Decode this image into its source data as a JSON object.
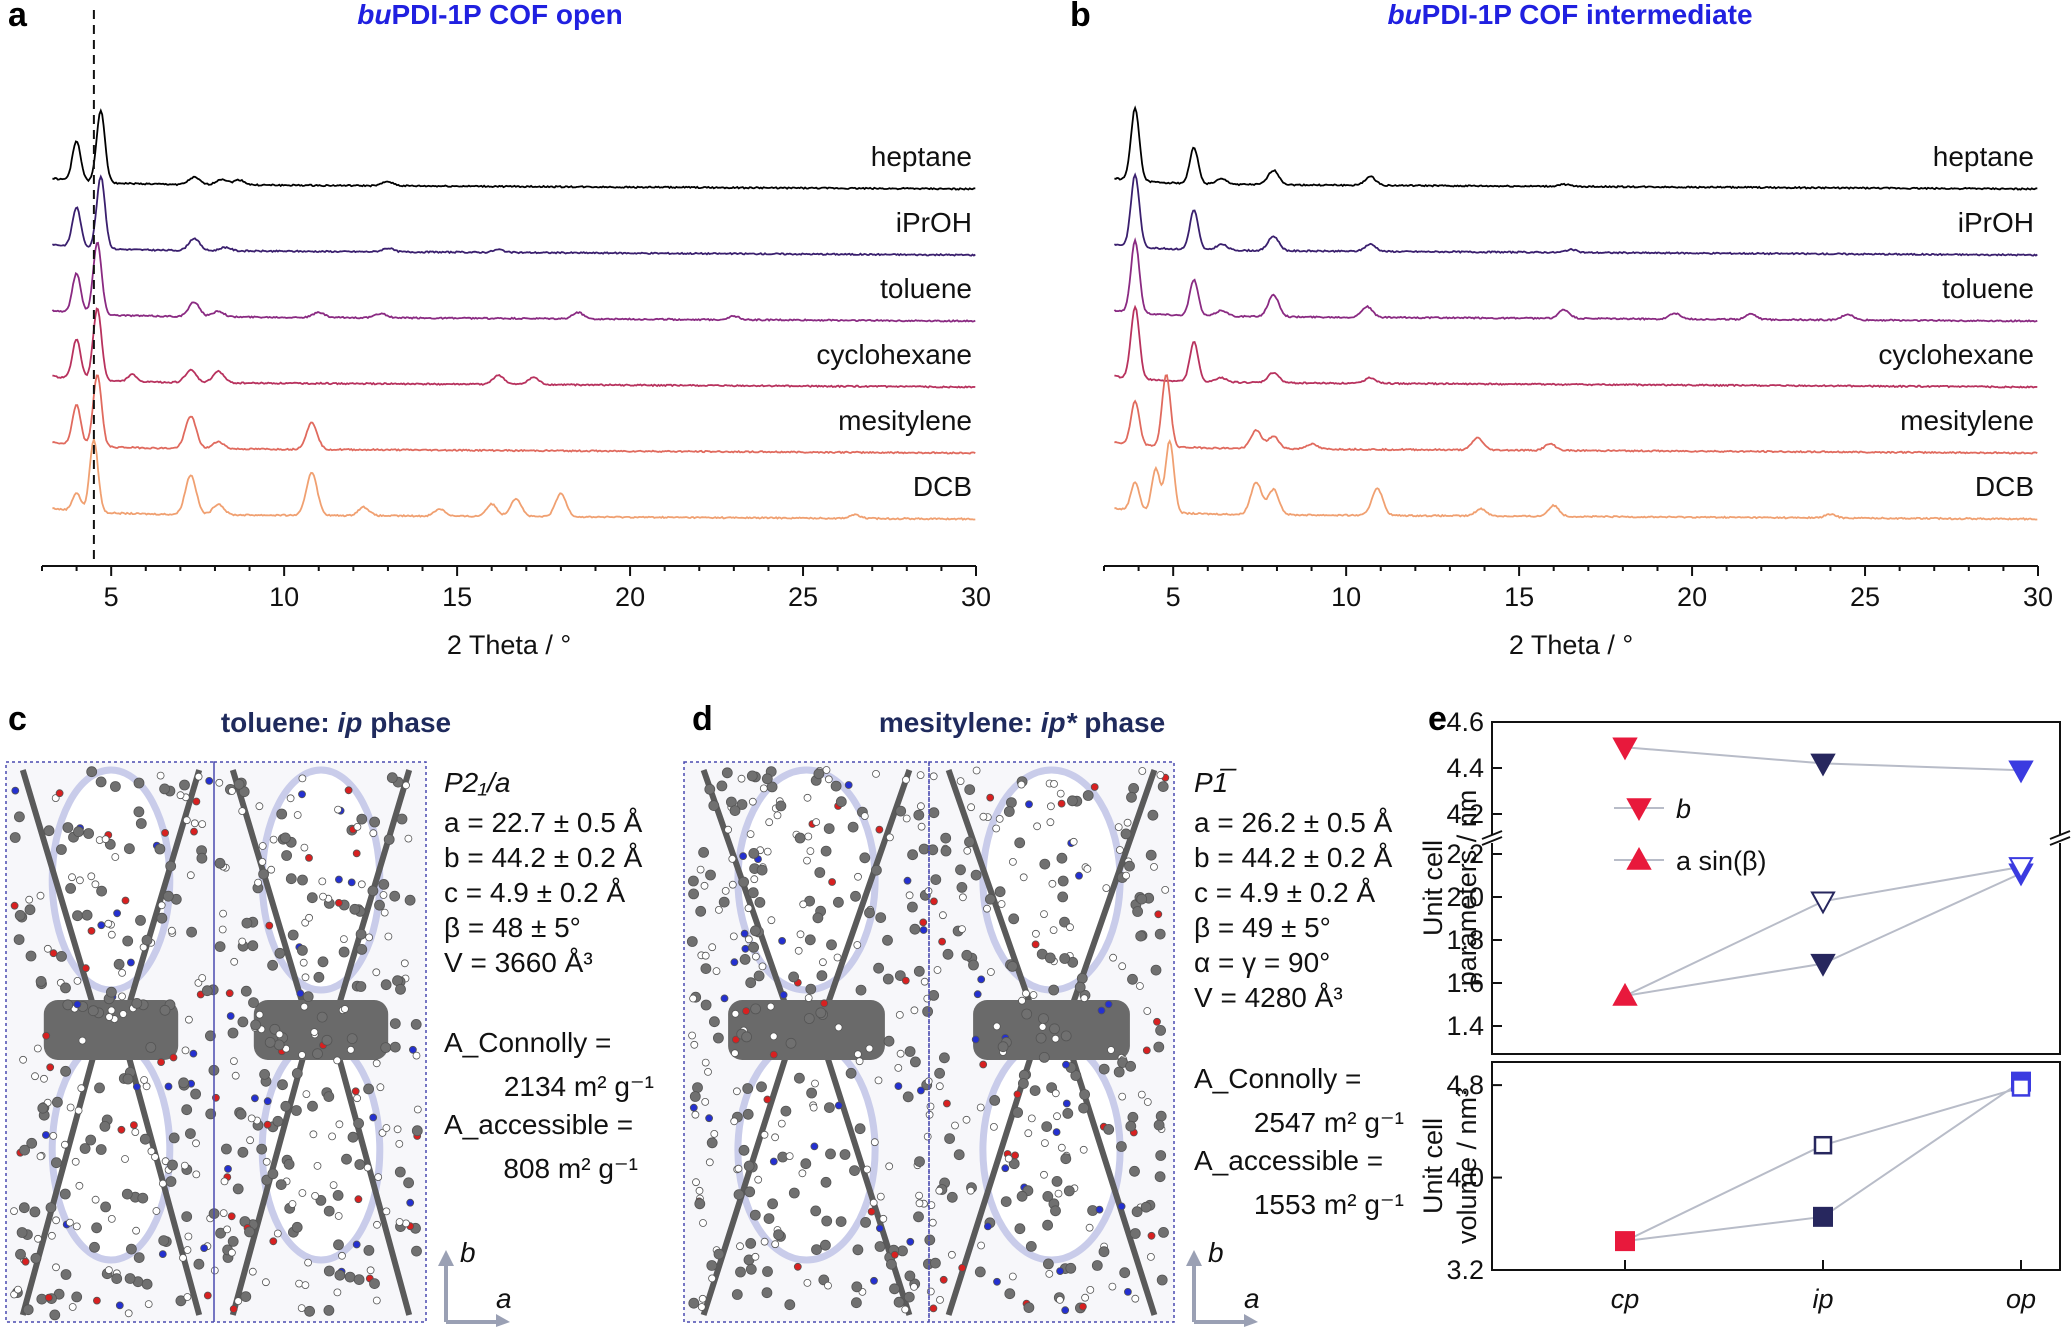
{
  "panels": {
    "a": {
      "letter": "a",
      "title_italic": "bu",
      "title_rest": "PDI-1P COF open"
    },
    "b": {
      "letter": "b",
      "title_italic": "bu",
      "title_rest": "PDI-1P COF intermediate"
    },
    "c": {
      "letter": "c",
      "title_pre": "toluene: ",
      "title_italic": "ip",
      "title_post": " phase"
    },
    "d": {
      "letter": "d",
      "title_pre": "mesitylene: ",
      "title_italic": "ip*",
      "title_post": " phase"
    },
    "e": {
      "letter": "e"
    }
  },
  "structure_c": {
    "space_group": "P2₁/a",
    "params": [
      "a = 22.7 ± 0.5 Å",
      "b = 44.2 ± 0.2 Å",
      "c = 4.9 ± 0.2 Å",
      "β = 48 ± 5°",
      "V = 3660 Å³"
    ],
    "connolly_label": "A_Connolly =",
    "connolly_value": "2134 m² g⁻¹",
    "accessible_label": "A_accessible =",
    "accessible_value": "808 m² g⁻¹",
    "axis_b": "b",
    "axis_a": "a"
  },
  "structure_d": {
    "space_group": "P1̅",
    "params": [
      "a = 26.2 ± 0.5 Å",
      "b = 44.2 ± 0.2 Å",
      "c = 4.9 ± 0.2 Å",
      "β = 49 ± 5°",
      "α = γ = 90°",
      "V = 4280 Å³"
    ],
    "connolly_label": "A_Connolly =",
    "connolly_value": "2547 m² g⁻¹",
    "accessible_label": "A_accessible =",
    "accessible_value": "1553 m² g⁻¹",
    "axis_b": "b",
    "axis_a": "a"
  },
  "chart_data": [
    {
      "panel": "a",
      "type": "line",
      "title": "buPDI-1P COF open",
      "xlabel": "2 Theta / °",
      "xlim": [
        3,
        30
      ],
      "xticks": [
        5,
        10,
        15,
        20,
        25,
        30
      ],
      "dashed_line_x": 4.5,
      "series": [
        {
          "name": "heptane",
          "color": "#000000",
          "peaks": [
            [
              4.0,
              0.55
            ],
            [
              4.7,
              1.0
            ],
            [
              7.4,
              0.1
            ],
            [
              8.2,
              0.08
            ],
            [
              8.7,
              0.07
            ],
            [
              13.0,
              0.06
            ]
          ]
        },
        {
          "name": "iPrOH",
          "color": "#3a1f6e",
          "peaks": [
            [
              4.0,
              0.55
            ],
            [
              4.7,
              1.0
            ],
            [
              7.4,
              0.17
            ],
            [
              8.3,
              0.05
            ],
            [
              13.0,
              0.05
            ],
            [
              16.2,
              0.04
            ]
          ]
        },
        {
          "name": "toluene",
          "color": "#8a2a82",
          "peaks": [
            [
              4.0,
              0.55
            ],
            [
              4.6,
              1.0
            ],
            [
              7.4,
              0.2
            ],
            [
              8.1,
              0.08
            ],
            [
              11.0,
              0.07
            ],
            [
              12.8,
              0.06
            ],
            [
              18.5,
              0.09
            ],
            [
              23.0,
              0.05
            ]
          ]
        },
        {
          "name": "cyclohexane",
          "color": "#b8325e",
          "peaks": [
            [
              4.0,
              0.55
            ],
            [
              4.6,
              1.0
            ],
            [
              5.6,
              0.1
            ],
            [
              7.3,
              0.17
            ],
            [
              8.1,
              0.16
            ],
            [
              16.2,
              0.13
            ],
            [
              17.2,
              0.1
            ]
          ]
        },
        {
          "name": "mesitylene",
          "color": "#e06a5e",
          "peaks": [
            [
              4.0,
              0.55
            ],
            [
              4.6,
              1.0
            ],
            [
              7.3,
              0.45
            ],
            [
              8.1,
              0.1
            ],
            [
              10.8,
              0.37
            ]
          ]
        },
        {
          "name": "DCB",
          "color": "#f0a071",
          "peaks": [
            [
              4.0,
              0.25
            ],
            [
              4.5,
              1.0
            ],
            [
              7.3,
              0.55
            ],
            [
              8.1,
              0.15
            ],
            [
              10.8,
              0.6
            ],
            [
              12.3,
              0.12
            ],
            [
              14.5,
              0.1
            ],
            [
              16.0,
              0.17
            ],
            [
              16.7,
              0.25
            ],
            [
              18.0,
              0.32
            ],
            [
              26.5,
              0.05
            ]
          ]
        }
      ]
    },
    {
      "panel": "b",
      "type": "line",
      "title": "buPDI-1P COF intermediate",
      "xlabel": "2 Theta / °",
      "xlim": [
        3,
        30
      ],
      "xticks": [
        5,
        10,
        15,
        20,
        25,
        30
      ],
      "series": [
        {
          "name": "heptane",
          "color": "#000000",
          "peaks": [
            [
              3.9,
              1.0
            ],
            [
              5.6,
              0.5
            ],
            [
              6.4,
              0.07
            ],
            [
              7.9,
              0.2
            ],
            [
              10.7,
              0.12
            ],
            [
              16.3,
              0.03
            ]
          ]
        },
        {
          "name": "iPrOH",
          "color": "#3a1f6e",
          "peaks": [
            [
              3.9,
              1.0
            ],
            [
              5.6,
              0.55
            ],
            [
              6.4,
              0.08
            ],
            [
              7.9,
              0.2
            ],
            [
              10.7,
              0.1
            ],
            [
              16.5,
              0.04
            ]
          ]
        },
        {
          "name": "toluene",
          "color": "#8a2a82",
          "peaks": [
            [
              3.9,
              1.0
            ],
            [
              5.6,
              0.5
            ],
            [
              6.4,
              0.08
            ],
            [
              7.9,
              0.3
            ],
            [
              10.6,
              0.15
            ],
            [
              16.3,
              0.12
            ],
            [
              19.5,
              0.08
            ],
            [
              21.7,
              0.08
            ],
            [
              24.5,
              0.08
            ]
          ]
        },
        {
          "name": "cyclohexane",
          "color": "#b8325e",
          "peaks": [
            [
              3.9,
              1.0
            ],
            [
              5.6,
              0.55
            ],
            [
              6.4,
              0.06
            ],
            [
              7.9,
              0.14
            ],
            [
              10.7,
              0.08
            ]
          ]
        },
        {
          "name": "mesitylene",
          "color": "#e06a5e",
          "peaks": [
            [
              3.9,
              0.6
            ],
            [
              4.8,
              1.0
            ],
            [
              7.4,
              0.25
            ],
            [
              7.9,
              0.17
            ],
            [
              9.0,
              0.07
            ],
            [
              13.8,
              0.17
            ],
            [
              15.9,
              0.09
            ]
          ]
        },
        {
          "name": "DCB",
          "color": "#f0a071",
          "peaks": [
            [
              3.9,
              0.4
            ],
            [
              4.5,
              0.6
            ],
            [
              4.9,
              1.0
            ],
            [
              7.4,
              0.45
            ],
            [
              7.9,
              0.35
            ],
            [
              10.9,
              0.38
            ],
            [
              13.9,
              0.1
            ],
            [
              16.0,
              0.15
            ],
            [
              24.0,
              0.05
            ]
          ]
        }
      ]
    },
    {
      "panel": "e-top",
      "type": "line",
      "ylabel": "Unit cell parameters / nm",
      "categories": [
        "cp",
        "ip",
        "op"
      ],
      "y_segments": [
        {
          "range": [
            1.4,
            2.25
          ],
          "ticks": [
            1.4,
            1.6,
            1.8,
            2.0,
            2.2
          ]
        },
        {
          "range": [
            4.1,
            4.6
          ],
          "ticks": [
            4.2,
            4.4,
            4.6
          ]
        }
      ],
      "legend": [
        {
          "name": "b",
          "marker": "down-triangle"
        },
        {
          "name": "a sin(β)",
          "marker": "up-triangle"
        }
      ],
      "series": [
        {
          "name": "b",
          "marker": "down-triangle",
          "values": [
            4.49,
            4.42,
            4.39
          ]
        },
        {
          "name": "a sin(β), filled down",
          "marker": "down-triangle-filled",
          "values": [
            null,
            1.69,
            2.11
          ]
        },
        {
          "name": "a sin(β), open down",
          "marker": "down-triangle-open",
          "values": [
            null,
            1.98,
            2.14
          ]
        },
        {
          "name": "a sin(β)",
          "marker": "up-triangle",
          "values": [
            1.54,
            null,
            null
          ]
        }
      ]
    },
    {
      "panel": "e-bottom",
      "type": "line",
      "ylabel": "Unit cell volume / nm³",
      "categories": [
        "cp",
        "ip",
        "op"
      ],
      "ylim": [
        3.2,
        5.0
      ],
      "yticks": [
        3.2,
        4.0,
        4.8
      ],
      "series": [
        {
          "name": "filled",
          "marker": "square-filled",
          "values": [
            3.45,
            3.66,
            4.83
          ]
        },
        {
          "name": "open",
          "marker": "square-open",
          "values": [
            null,
            4.28,
            4.78
          ]
        }
      ]
    }
  ],
  "colors": {
    "title_blue": "#2020e0",
    "title_dark": "#1f2a5c",
    "cp_red": "#e8193c",
    "ip_navy": "#27275e",
    "op_blue": "#3b3be0",
    "connector": "#b8bcc8",
    "cell_border": "#4a4ab0"
  }
}
